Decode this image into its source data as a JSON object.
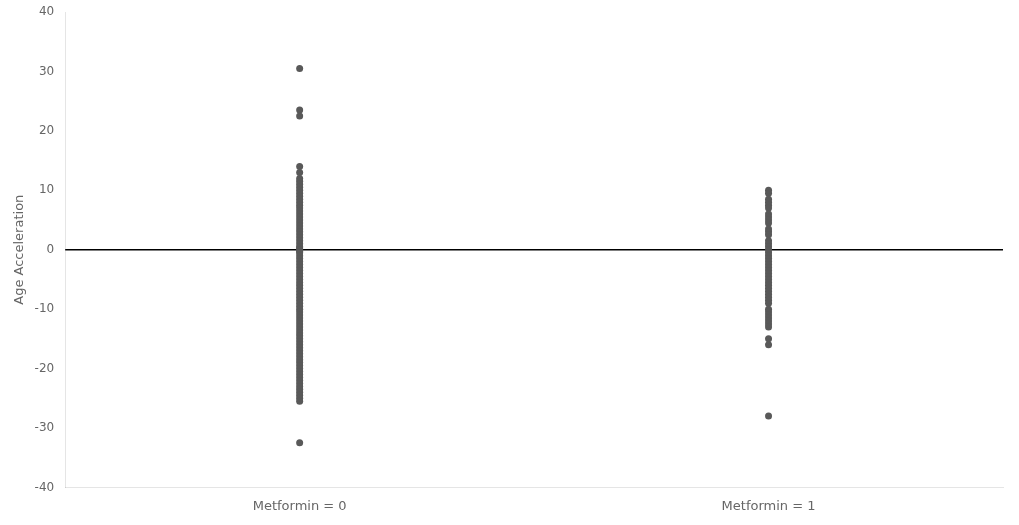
{
  "chart_data": {
    "type": "strip",
    "ylabel": "Age Acceleration",
    "categories": [
      "Metformin = 0",
      "Metformin = 1"
    ],
    "values": [
      [
        30.5,
        23.5,
        22.5,
        14.0,
        13.0,
        12.0,
        11.5,
        11.0,
        10.5,
        10.0,
        9.5,
        9.0,
        8.5,
        8.0,
        7.5,
        7.0,
        6.5,
        6.0,
        5.5,
        5.0,
        4.5,
        4.0,
        3.5,
        3.0,
        2.5,
        2.0,
        1.5,
        1.0,
        0.5,
        0.3,
        0.0,
        -0.3,
        -0.5,
        -1.0,
        -1.5,
        -2.0,
        -2.5,
        -3.0,
        -3.5,
        -4.0,
        -4.5,
        -5.0,
        -5.5,
        -6.0,
        -6.5,
        -7.0,
        -7.5,
        -8.0,
        -8.5,
        -9.0,
        -9.5,
        -10.0,
        -10.5,
        -11.0,
        -11.5,
        -12.0,
        -12.5,
        -13.0,
        -13.5,
        -14.0,
        -14.5,
        -15.0,
        -15.5,
        -16.0,
        -16.5,
        -17.0,
        -17.5,
        -18.0,
        -18.5,
        -19.0,
        -19.5,
        -20.0,
        -20.5,
        -21.0,
        -21.5,
        -22.0,
        -22.5,
        -23.0,
        -23.5,
        -24.0,
        -24.5,
        -25.0,
        -25.5,
        -32.5
      ],
      [
        10.0,
        9.5,
        8.5,
        8.0,
        7.5,
        7.0,
        6.0,
        5.5,
        5.0,
        4.5,
        3.5,
        3.0,
        2.5,
        1.5,
        1.0,
        0.5,
        0.0,
        -0.5,
        -1.0,
        -1.5,
        -2.0,
        -2.5,
        -3.0,
        -3.5,
        -4.0,
        -4.5,
        -5.0,
        -5.5,
        -6.0,
        -6.5,
        -7.0,
        -7.5,
        -8.0,
        -8.5,
        -9.0,
        -10.0,
        -10.5,
        -11.0,
        -11.5,
        -12.0,
        -12.5,
        -13.0,
        -15.0,
        -16.0,
        -28.0
      ]
    ],
    "color": "#595959",
    "hline": 0,
    "hline_color": "#000000",
    "ylim": [
      -40,
      40
    ],
    "yticks": [
      -40,
      -30,
      -20,
      -10,
      0,
      10,
      20,
      30,
      40
    ],
    "grid": false
  }
}
